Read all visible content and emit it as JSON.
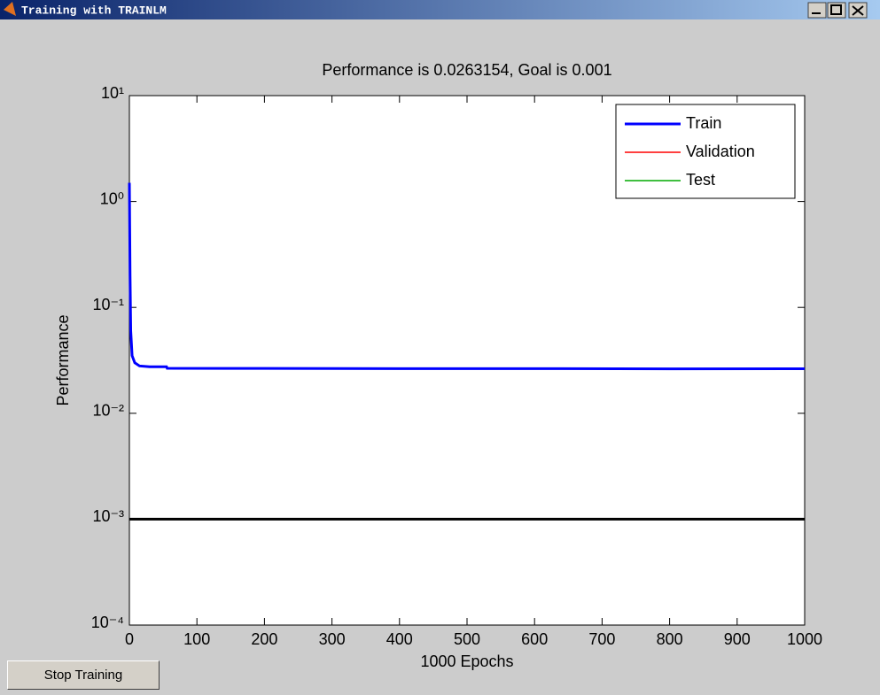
{
  "window": {
    "title": "Training with TRAINLM"
  },
  "button": {
    "label": "Stop Training"
  },
  "chart_data": {
    "type": "line",
    "title": "Performance is 0.0263154, Goal is 0.001",
    "xlabel": "1000 Epochs",
    "ylabel": "Performance",
    "log_y": true,
    "grid": false,
    "legend": "upper right",
    "xlim": [
      0,
      1000
    ],
    "ylim": [
      0.0001,
      10
    ],
    "xticks": [
      0,
      100,
      200,
      300,
      400,
      500,
      600,
      700,
      800,
      900,
      1000
    ],
    "yticks": [
      {
        "value": 0.0001,
        "label": "10⁻⁴"
      },
      {
        "value": 0.001,
        "label": "10⁻³"
      },
      {
        "value": 0.01,
        "label": "10⁻²"
      },
      {
        "value": 0.1,
        "label": "10⁻¹"
      },
      {
        "value": 1,
        "label": "10⁰"
      },
      {
        "value": 10,
        "label": "10¹"
      }
    ],
    "goal": 0.001,
    "goal_color": "#000000",
    "x": [
      0,
      1,
      2,
      4,
      8,
      15,
      30,
      55,
      56,
      200,
      400,
      600,
      800,
      1000
    ],
    "series": [
      {
        "name": "Train",
        "color": "#0000ff",
        "values": [
          1.5,
          0.2,
          0.06,
          0.035,
          0.03,
          0.028,
          0.0275,
          0.0275,
          0.0266,
          0.0265,
          0.0264,
          0.0264,
          0.0263,
          0.0263154
        ]
      },
      {
        "name": "Validation",
        "color": "#ff0000",
        "values": [
          null,
          null,
          null,
          null,
          null,
          null,
          null,
          null,
          null,
          null,
          null,
          null,
          null,
          null
        ]
      },
      {
        "name": "Test",
        "color": "#00aa00",
        "values": [
          null,
          null,
          null,
          null,
          null,
          null,
          null,
          null,
          null,
          null,
          null,
          null,
          null,
          null
        ]
      }
    ]
  }
}
